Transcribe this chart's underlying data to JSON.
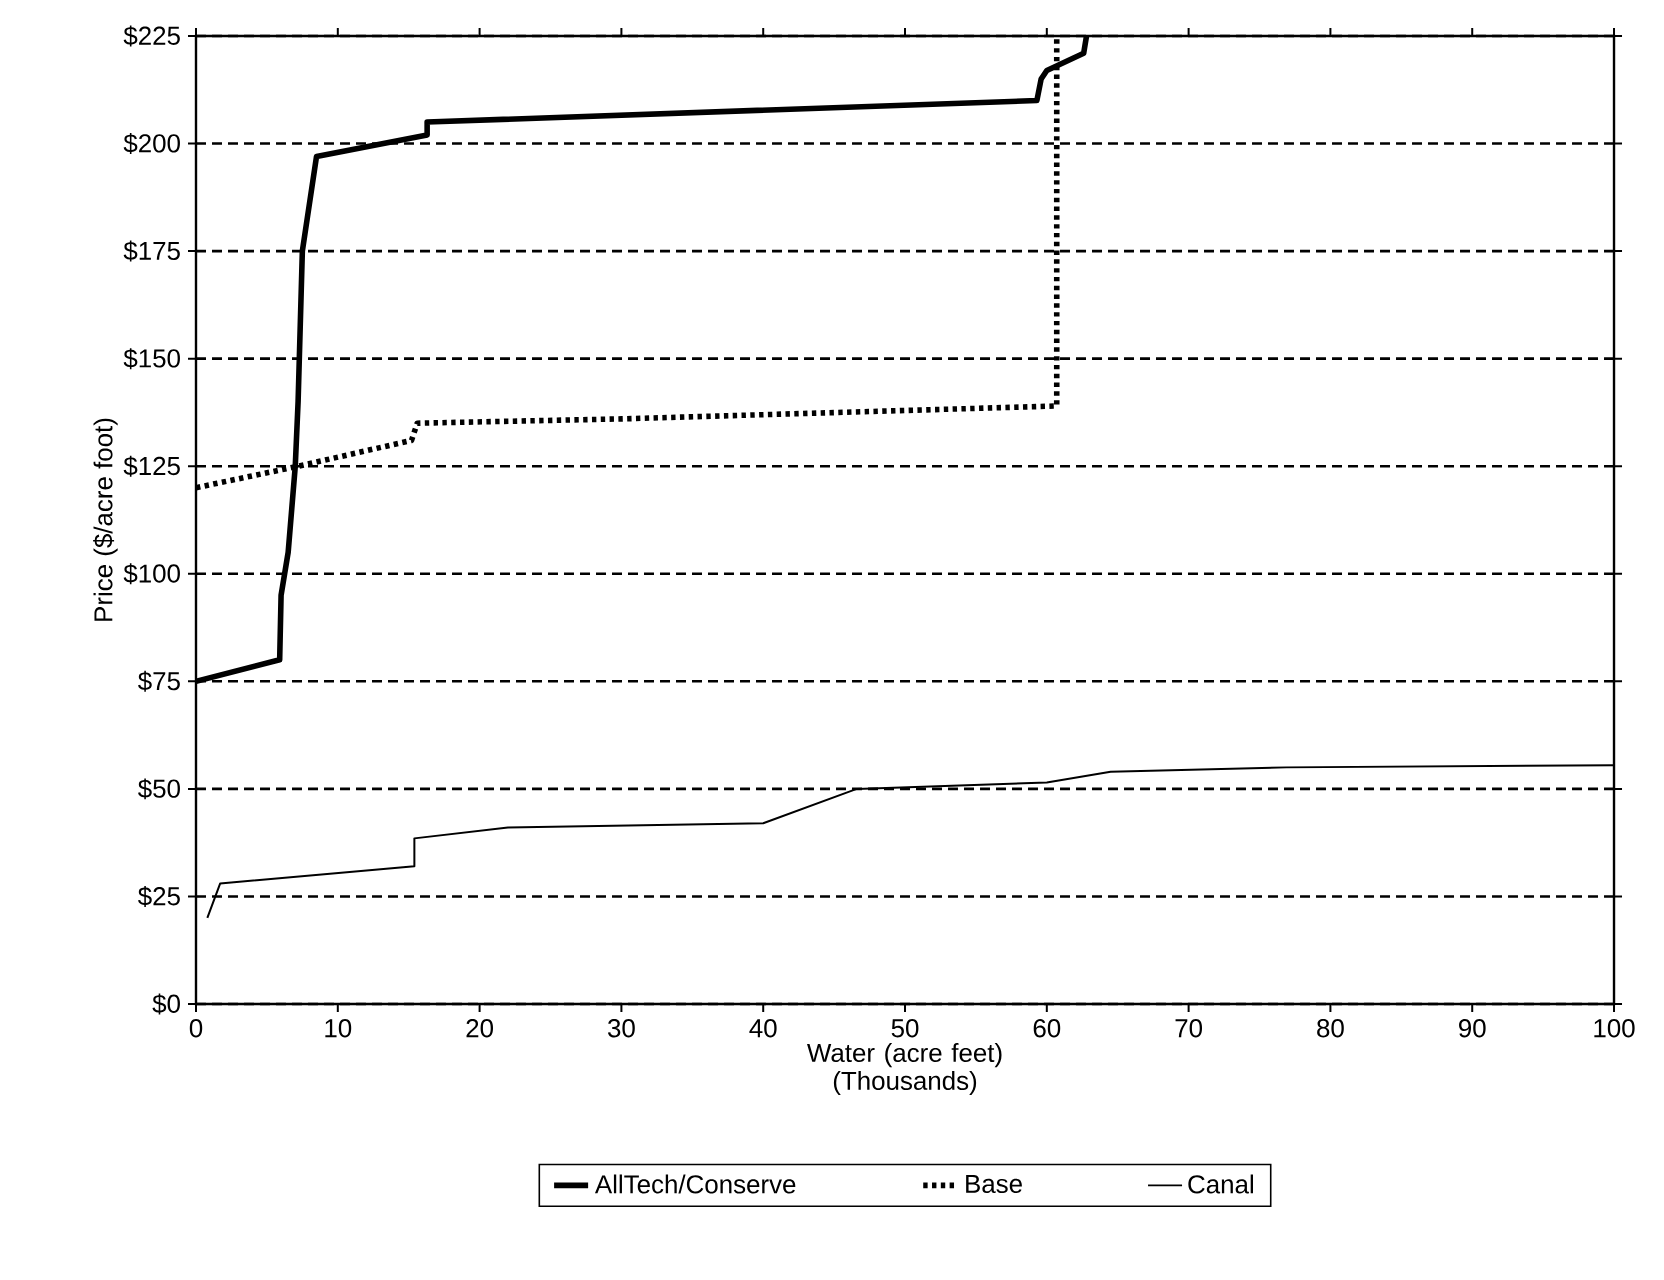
{
  "chart_data": {
    "type": "line",
    "xlabel": "Water (acre feet) (Thousands)",
    "ylabel": "Price ($/acre foot)",
    "xlim": [
      0,
      100
    ],
    "xticks": [
      0,
      10,
      20,
      30,
      40,
      50,
      60,
      70,
      80,
      90,
      100
    ],
    "ylim": [
      0,
      225
    ],
    "yticks": [
      {
        "value": 0,
        "label": "$0"
      },
      {
        "value": 25,
        "label": "$25"
      },
      {
        "value": 50,
        "label": "$50"
      },
      {
        "value": 75,
        "label": "$75"
      },
      {
        "value": 100,
        "label": "$100"
      },
      {
        "value": 125,
        "label": "$125"
      },
      {
        "value": 150,
        "label": "$150"
      },
      {
        "value": 175,
        "label": "$175"
      },
      {
        "value": 200,
        "label": "$200"
      },
      {
        "value": 225,
        "label": "$225"
      }
    ],
    "grid": "y",
    "legend": "bottom",
    "marker": "none",
    "series": [
      {
        "name": "AllTech/Conserve",
        "color": "#000000",
        "line_style": "solid",
        "x": [
          0,
          5.9,
          6,
          6.5,
          7,
          7.2,
          7.5,
          8.5,
          16.3,
          16.3,
          59.3,
          59.6,
          60,
          62.6,
          62.8
        ],
        "values": [
          75,
          80,
          95,
          105,
          125,
          140,
          175,
          197,
          202,
          205,
          210,
          215,
          217,
          221,
          225
        ]
      },
      {
        "name": "Base",
        "color": "#000000",
        "line_style": "dotted",
        "x": [
          0,
          7.2,
          15.2,
          15.6,
          30,
          60.7,
          60.7
        ],
        "values": [
          120,
          125,
          131,
          135,
          136,
          139,
          225
        ]
      },
      {
        "name": "Canal",
        "color": "#000000",
        "line_style": "solid",
        "x": [
          0.8,
          1.7,
          15.4,
          15.4,
          22,
          40,
          46.6,
          60,
          64.5,
          76.9,
          100
        ],
        "values": [
          20,
          28,
          32,
          38.5,
          41,
          42,
          50,
          51.5,
          54,
          55,
          55.5
        ]
      }
    ]
  }
}
